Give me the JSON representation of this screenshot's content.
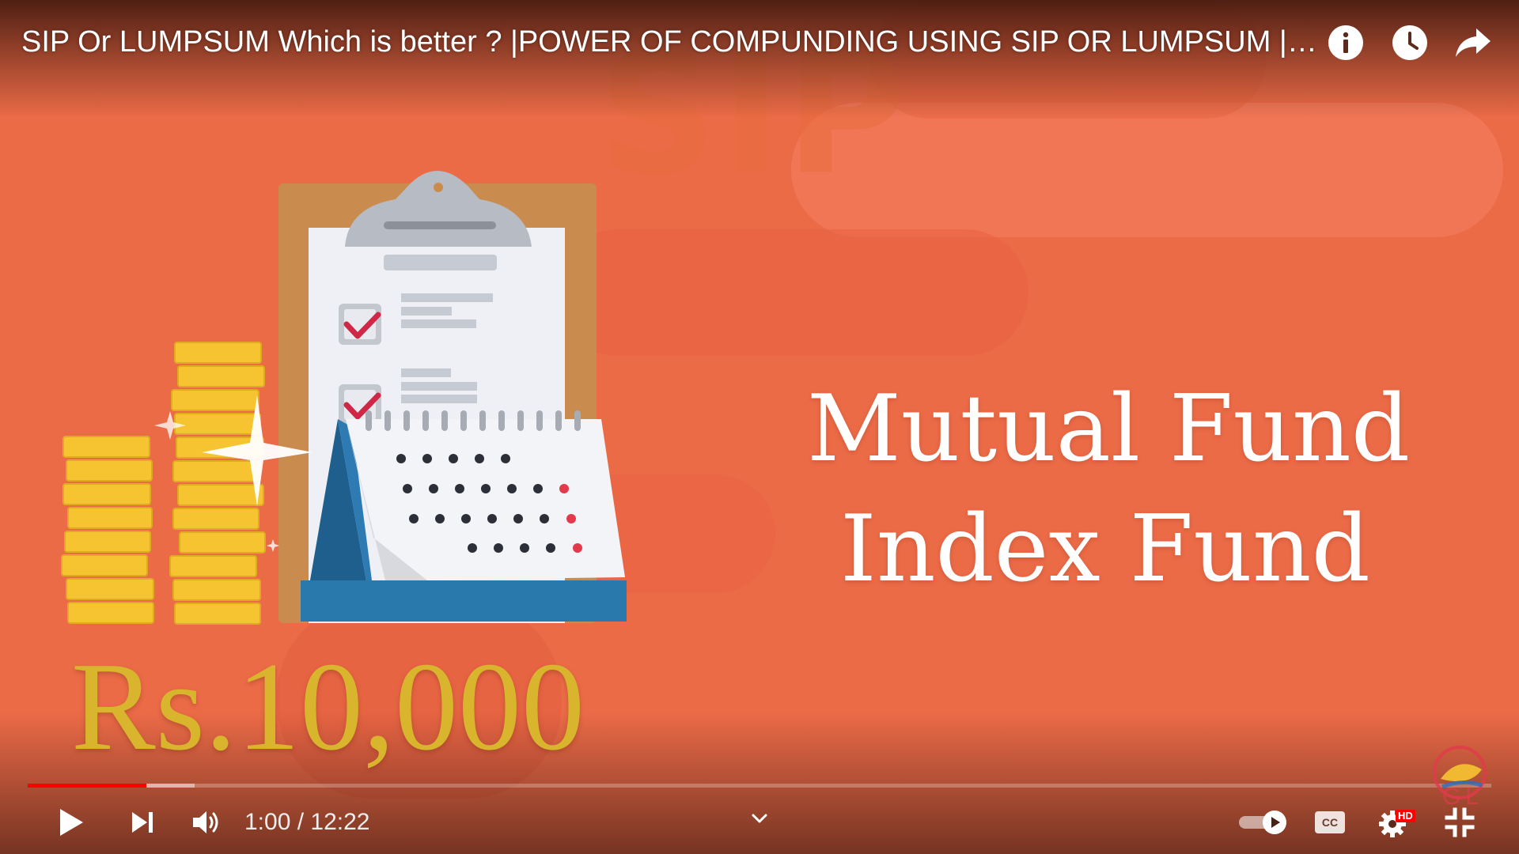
{
  "video": {
    "title": "SIP Or LUMPSUM Which is better ? |POWER OF COMPUNDING USING SIP OR LUMPSUM | Mutual Fund | Index Fund"
  },
  "top_actions": {
    "info": "info-icon",
    "watch_later": "clock-icon",
    "share": "share-icon"
  },
  "overlay": {
    "watermark": "SIP",
    "line1": "Mutual Fund",
    "line2": "Index Fund",
    "amount": "Rs.10,000"
  },
  "playback": {
    "current_time": "1:00",
    "separator": " / ",
    "duration": "12:22",
    "played_fraction": 0.081,
    "buffered_fraction": 0.114
  },
  "controls": {
    "autoplay_on": true,
    "hd_badge": "HD",
    "channel_logo_text": "GL"
  },
  "colors": {
    "background": "#ec6b47",
    "progress_played": "#ff0000",
    "amount_gold": "#d8b52c",
    "hd_badge": "#ff0000"
  }
}
